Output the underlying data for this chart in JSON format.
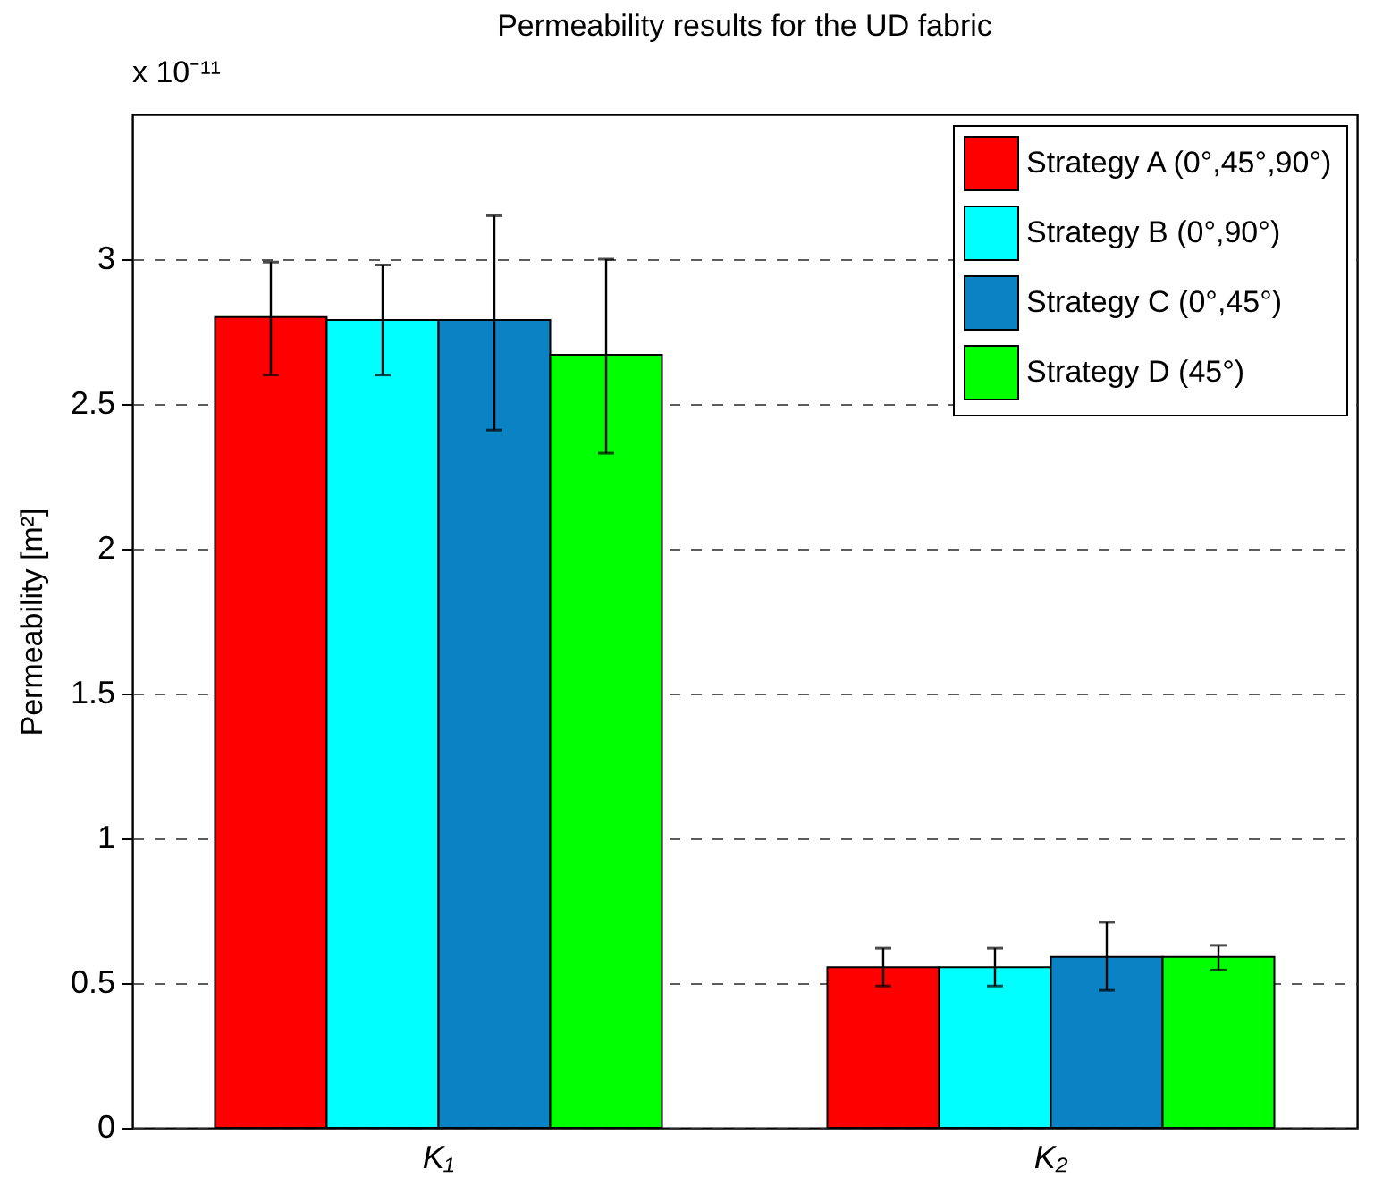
{
  "chart_data": {
    "type": "bar",
    "title": "Permeability results for the UD fabric",
    "ylabel": "Permeability [m²]",
    "annotations": [
      "x 10⁻¹¹"
    ],
    "categories": [
      "K₁",
      "K₂"
    ],
    "series": [
      {
        "name": "Strategy A (0°,45°,90°)",
        "color": "#ff0000",
        "values": [
          2.8,
          0.555
        ],
        "errors": [
          [
            2.6,
            2.99
          ],
          [
            0.49,
            0.62
          ]
        ]
      },
      {
        "name": "Strategy B (0°,90°)",
        "color": "#00ffff",
        "values": [
          2.79,
          0.555
        ],
        "errors": [
          [
            2.6,
            2.98
          ],
          [
            0.49,
            0.62
          ]
        ]
      },
      {
        "name": "Strategy C (0°,45°)",
        "color": "#0a82c4",
        "values": [
          2.79,
          0.59
        ],
        "errors": [
          [
            2.41,
            3.15
          ],
          [
            0.475,
            0.71
          ]
        ]
      },
      {
        "name": "Strategy D (45°)",
        "color": "#00ff00",
        "values": [
          2.67,
          0.59
        ],
        "errors": [
          [
            2.33,
            3.0
          ],
          [
            0.545,
            0.63
          ]
        ]
      }
    ],
    "ylim": [
      0,
      3.5
    ],
    "yticks": [
      0,
      0.5,
      1,
      1.5,
      2,
      2.5,
      3
    ],
    "grid": "y",
    "legend": "top right"
  }
}
